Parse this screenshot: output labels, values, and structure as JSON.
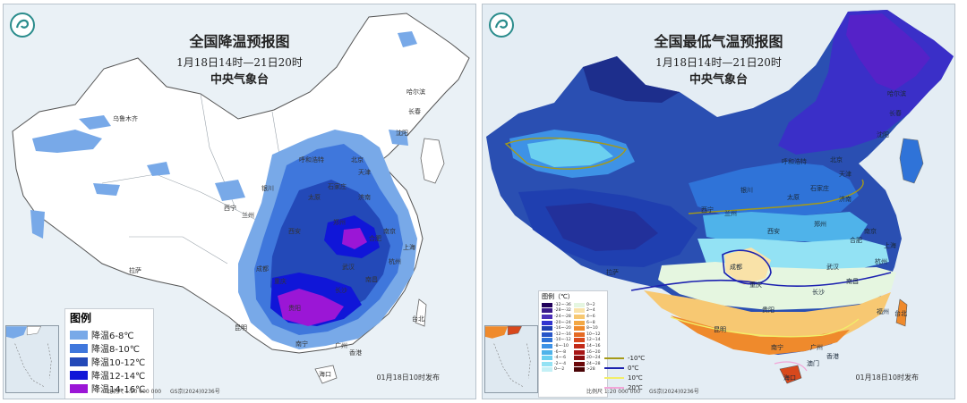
{
  "left_map": {
    "title": "全国降温预报图",
    "subtitle": "1月18日14时—21日20时",
    "agency": "中央气象台",
    "legend": {
      "title": "图例",
      "items": [
        {
          "label": "降温6-8℃",
          "color": "#78a9e8"
        },
        {
          "label": "降温8-10℃",
          "color": "#3f77dc"
        },
        {
          "label": "降温10-12℃",
          "color": "#2349b8"
        },
        {
          "label": "降温12-14℃",
          "color": "#1016d8"
        },
        {
          "label": "降温14-16℃",
          "color": "#9b16d6"
        }
      ]
    },
    "cities": [
      "乌鲁木齐",
      "哈尔滨",
      "长春",
      "沈阳",
      "呼和浩特",
      "北京",
      "天津",
      "石家庄",
      "太原",
      "济南",
      "银川",
      "兰州",
      "西宁",
      "郑州",
      "西安",
      "合肥",
      "南京",
      "上海",
      "成都",
      "重庆",
      "武汉",
      "杭州",
      "长沙",
      "南昌",
      "贵阳",
      "昆明",
      "拉萨",
      "南宁",
      "广州",
      "香港",
      "台北",
      "海口"
    ],
    "issued": "01月18日10时发布",
    "scale_label": "比例尺 1:20 000 000",
    "approval": "GS京(2024)0236号"
  },
  "right_map": {
    "title": "全国最低气温预报图",
    "subtitle": "1月18日14时—21日20时",
    "agency": "中央气象台",
    "legend": {
      "title": "图例（℃）",
      "left_col": [
        {
          "label": "-32~-36",
          "color": "#20005a"
        },
        {
          "label": "-28~-32",
          "color": "#3a1a8c"
        },
        {
          "label": "-24~-28",
          "color": "#4a2fb8"
        },
        {
          "label": "-20~-24",
          "color": "#3234d0"
        },
        {
          "label": "-16~-20",
          "color": "#1f3fb0"
        },
        {
          "label": "-12~-16",
          "color": "#2856c8"
        },
        {
          "label": "-10~-12",
          "color": "#2f73d8"
        },
        {
          "label": "-8~-10",
          "color": "#3e92e6"
        },
        {
          "label": "-6~-8",
          "color": "#4fb3ea"
        },
        {
          "label": "-4~-6",
          "color": "#6bd0f0"
        },
        {
          "label": "-2~-4",
          "color": "#93e2f4"
        },
        {
          "label": "0~-2",
          "color": "#c4f0f6"
        }
      ],
      "right_col": [
        {
          "label": "0~2",
          "color": "#e5f6e0"
        },
        {
          "label": "2~4",
          "color": "#f9e2a8"
        },
        {
          "label": "4~6",
          "color": "#f7c872"
        },
        {
          "label": "6~8",
          "color": "#f3a844"
        },
        {
          "label": "8~10",
          "color": "#ef8a2c"
        },
        {
          "label": "10~12",
          "color": "#e56a22"
        },
        {
          "label": "12~14",
          "color": "#d8481c"
        },
        {
          "label": "14~16",
          "color": "#c22a18"
        },
        {
          "label": "16~20",
          "color": "#a81616"
        },
        {
          "label": "20~24",
          "color": "#8a0e10"
        },
        {
          "label": "24~28",
          "color": "#6c080a"
        },
        {
          "label": ">28",
          "color": "#4a0406"
        }
      ],
      "isolines": [
        {
          "label": "-10℃",
          "color": "#a59a18"
        },
        {
          "label": "0℃",
          "color": "#1d22b0"
        },
        {
          "label": "10℃",
          "color": "#f2ee6a"
        },
        {
          "label": "20℃",
          "color": "#f2a6d8"
        }
      ]
    },
    "cities": [
      "哈尔滨",
      "长春",
      "沈阳",
      "呼和浩特",
      "北京",
      "天津",
      "石家庄",
      "太原",
      "济南",
      "银川",
      "兰州",
      "西宁",
      "郑州",
      "西安",
      "合肥",
      "南京",
      "上海",
      "成都",
      "重庆",
      "武汉",
      "杭州",
      "长沙",
      "南昌",
      "福州",
      "贵阳",
      "昆明",
      "拉萨",
      "南宁",
      "广州",
      "香港",
      "澳门",
      "台北",
      "海口"
    ],
    "issued": "01月18日10时发布",
    "scale_label": "比例尺 1:20 000 000",
    "approval": "GS京(2024)0236号"
  }
}
